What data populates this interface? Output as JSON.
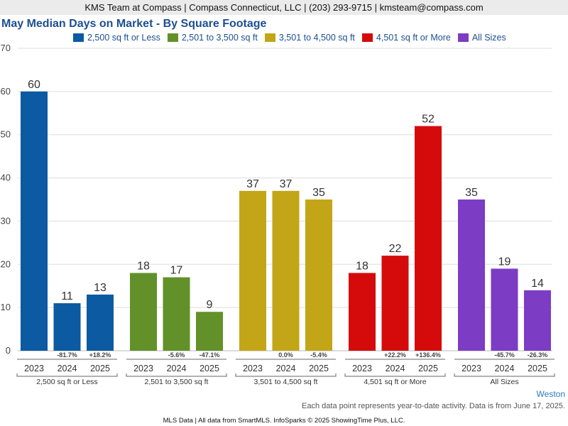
{
  "header": {
    "text": "KMS Team at Compass | Compass Connecticut, LLC | (203) 293-9715 | kmsteam@compass.com"
  },
  "chart_data": {
    "type": "bar",
    "title": "May Median Days on Market - By Square Footage",
    "ylim": [
      0,
      70
    ],
    "yticks": [
      0,
      10,
      20,
      30,
      40,
      50,
      60,
      70
    ],
    "grid": true,
    "legend_position": "top",
    "groups": [
      {
        "name": "2,500 sq ft or Less",
        "color": "#0b5aa2",
        "years": [
          "2023",
          "2024",
          "2025"
        ],
        "values": [
          60,
          11,
          13
        ],
        "changes": [
          "",
          "-81.7%",
          "+18.2%"
        ]
      },
      {
        "name": "2,501 to 3,500 sq ft",
        "color": "#629129",
        "years": [
          "2023",
          "2024",
          "2025"
        ],
        "values": [
          18,
          17,
          9
        ],
        "changes": [
          "",
          "-5.6%",
          "-47.1%"
        ]
      },
      {
        "name": "3,501 to 4,500 sq ft",
        "color": "#c2a617",
        "years": [
          "2023",
          "2024",
          "2025"
        ],
        "values": [
          37,
          37,
          35
        ],
        "changes": [
          "",
          "0.0%",
          "-5.4%"
        ]
      },
      {
        "name": "4,501 sq ft or More",
        "color": "#d50b0b",
        "years": [
          "2023",
          "2024",
          "2025"
        ],
        "values": [
          18,
          22,
          52
        ],
        "changes": [
          "",
          "+22.2%",
          "+136.4%"
        ]
      },
      {
        "name": "All Sizes",
        "color": "#7d3cc4",
        "years": [
          "2023",
          "2024",
          "2025"
        ],
        "values": [
          35,
          19,
          14
        ],
        "changes": [
          "",
          "-45.7%",
          "-26.3%"
        ]
      }
    ]
  },
  "footer": {
    "location": "Weston",
    "note": "Each data point represents year-to-date activity. Data is from June 17, 2025.",
    "source": "MLS Data | All data from SmartMLS. InfoSparks © 2025 ShowingTime Plus, LLC."
  }
}
